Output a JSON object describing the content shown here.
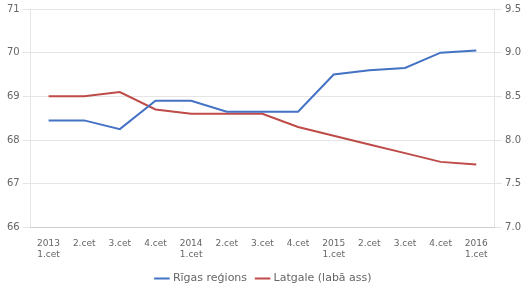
{
  "chart_data": {
    "type": "line",
    "categories": [
      "2013\n1.cet",
      "2.cet",
      "3.cet",
      "4.cet",
      "2014\n1.cet",
      "2.cet",
      "3.cet",
      "4.cet",
      "2015\n1.cet",
      "2.cet",
      "3.cet",
      "4.cet",
      "2016\n1.cet"
    ],
    "series": [
      {
        "name": "Rīgas reģions",
        "color": "#4472C4",
        "marker": "none",
        "values": [
          68.45,
          68.45,
          68.25,
          68.9,
          68.9,
          68.65,
          68.65,
          68.65,
          69.5,
          69.6,
          69.65,
          70.0,
          70.05
        ]
      },
      {
        "name": "Latgale (labā ass)",
        "color": "#BE4B48",
        "marker": "none",
        "axis": "y2",
        "values": [
          8.5,
          8.5,
          8.55,
          8.35,
          8.3,
          8.3,
          8.3,
          8.15,
          8.05,
          7.95,
          7.85,
          7.75,
          7.72
        ]
      }
    ],
    "ylim": [
      66,
      71
    ],
    "yticks": [
      66,
      67,
      68,
      69,
      70,
      71
    ],
    "y2lim": [
      7.0,
      9.5
    ],
    "y2ticks": [
      {
        "value": 7.0,
        "label": "7.0"
      },
      {
        "value": 7.5,
        "label": "7.5"
      },
      {
        "value": 8.0,
        "label": "8.0"
      },
      {
        "value": 8.5,
        "label": "8.5"
      },
      {
        "value": 9.0,
        "label": "9.0"
      },
      {
        "value": 9.5,
        "label": "9.5"
      }
    ],
    "grid": true,
    "legend": "bottom"
  }
}
